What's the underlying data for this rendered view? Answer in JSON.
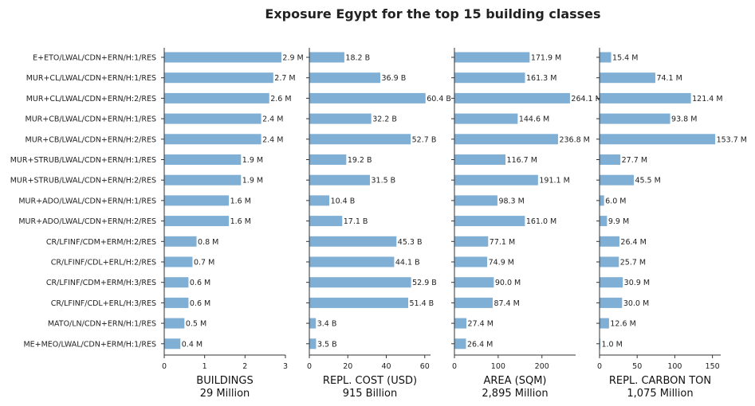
{
  "title": "Exposure Egypt for the top 15 building classes",
  "bar_color": "#7fafd4",
  "categories": [
    "E+ETO/LWAL/CDN+ERN/H:1/RES",
    "MUR+CL/LWAL/CDN+ERN/H:1/RES",
    "MUR+CL/LWAL/CDN+ERN/H:2/RES",
    "MUR+CB/LWAL/CDN+ERN/H:1/RES",
    "MUR+CB/LWAL/CDN+ERN/H:2/RES",
    "MUR+STRUB/LWAL/CDN+ERN/H:1/RES",
    "MUR+STRUB/LWAL/CDN+ERN/H:2/RES",
    "MUR+ADO/LWAL/CDN+ERN/H:1/RES",
    "MUR+ADO/LWAL/CDN+ERN/H:2/RES",
    "CR/LFINF/CDM+ERM/H:2/RES",
    "CR/LFINF/CDL+ERL/H:2/RES",
    "CR/LFINF/CDM+ERM/H:3/RES",
    "CR/LFINF/CDL+ERL/H:3/RES",
    "MATO/LN/CDN+ERN/H:1/RES",
    "ME+MEO/LWAL/CDN+ERM/H:1/RES"
  ],
  "chart_data": [
    {
      "type": "bar",
      "orientation": "horizontal",
      "xlabel": "BUILDINGS",
      "xlabel2": "29 Million",
      "xlim": [
        0,
        3
      ],
      "ticks": [
        0,
        1,
        2,
        3
      ],
      "values": [
        2.9,
        2.7,
        2.6,
        2.4,
        2.4,
        1.9,
        1.9,
        1.6,
        1.6,
        0.8,
        0.7,
        0.6,
        0.6,
        0.5,
        0.4
      ],
      "labels": [
        "2.9 M",
        "2.7 M",
        "2.6 M",
        "2.4 M",
        "2.4 M",
        "1.9 M",
        "1.9 M",
        "1.6 M",
        "1.6 M",
        "0.8 M",
        "0.7 M",
        "0.6 M",
        "0.6 M",
        "0.5 M",
        "0.4 M"
      ]
    },
    {
      "type": "bar",
      "orientation": "horizontal",
      "xlabel": "REPL. COST (USD)",
      "xlabel2": "915 Billion",
      "xlim": [
        0,
        63
      ],
      "ticks": [
        0,
        20,
        40,
        60
      ],
      "values": [
        18.2,
        36.9,
        60.4,
        32.2,
        52.7,
        19.2,
        31.5,
        10.4,
        17.1,
        45.3,
        44.1,
        52.9,
        51.4,
        3.4,
        3.5
      ],
      "labels": [
        "18.2 B",
        "36.9 B",
        "60.4 B",
        "32.2 B",
        "52.7 B",
        "19.2 B",
        "31.5 B",
        "10.4 B",
        "17.1 B",
        "45.3 B",
        "44.1 B",
        "52.9 B",
        "51.4 B",
        "3.4 B",
        "3.5 B"
      ]
    },
    {
      "type": "bar",
      "orientation": "horizontal",
      "xlabel": "AREA (SQM)",
      "xlabel2": "2,895 Million",
      "xlim": [
        0,
        277
      ],
      "ticks": [
        0,
        100,
        200
      ],
      "values": [
        171.9,
        161.3,
        264.1,
        144.6,
        236.8,
        116.7,
        191.1,
        98.3,
        161.0,
        77.1,
        74.9,
        90.0,
        87.4,
        27.4,
        26.4
      ],
      "labels": [
        "171.9 M",
        "161.3 M",
        "264.1 M",
        "144.6 M",
        "236.8 M",
        "116.7 M",
        "191.1 M",
        "98.3 M",
        "161.0 M",
        "77.1 M",
        "74.9 M",
        "90.0 M",
        "87.4 M",
        "27.4 M",
        "26.4 M"
      ]
    },
    {
      "type": "bar",
      "orientation": "horizontal",
      "xlabel": "REPL. CARBON TON",
      "xlabel2": "1,075 Million",
      "xlim": [
        0,
        161
      ],
      "ticks": [
        0,
        50,
        100,
        150
      ],
      "values": [
        15.4,
        74.1,
        121.4,
        93.8,
        153.7,
        27.7,
        45.5,
        6.0,
        9.9,
        26.4,
        25.7,
        30.9,
        30.0,
        12.6,
        1.0
      ],
      "labels": [
        "15.4 M",
        "74.1 M",
        "121.4 M",
        "93.8 M",
        "153.7 M",
        "27.7 M",
        "45.5 M",
        "6.0 M",
        "9.9 M",
        "26.4 M",
        "25.7 M",
        "30.9 M",
        "30.0 M",
        "12.6 M",
        "1.0 M"
      ]
    }
  ]
}
